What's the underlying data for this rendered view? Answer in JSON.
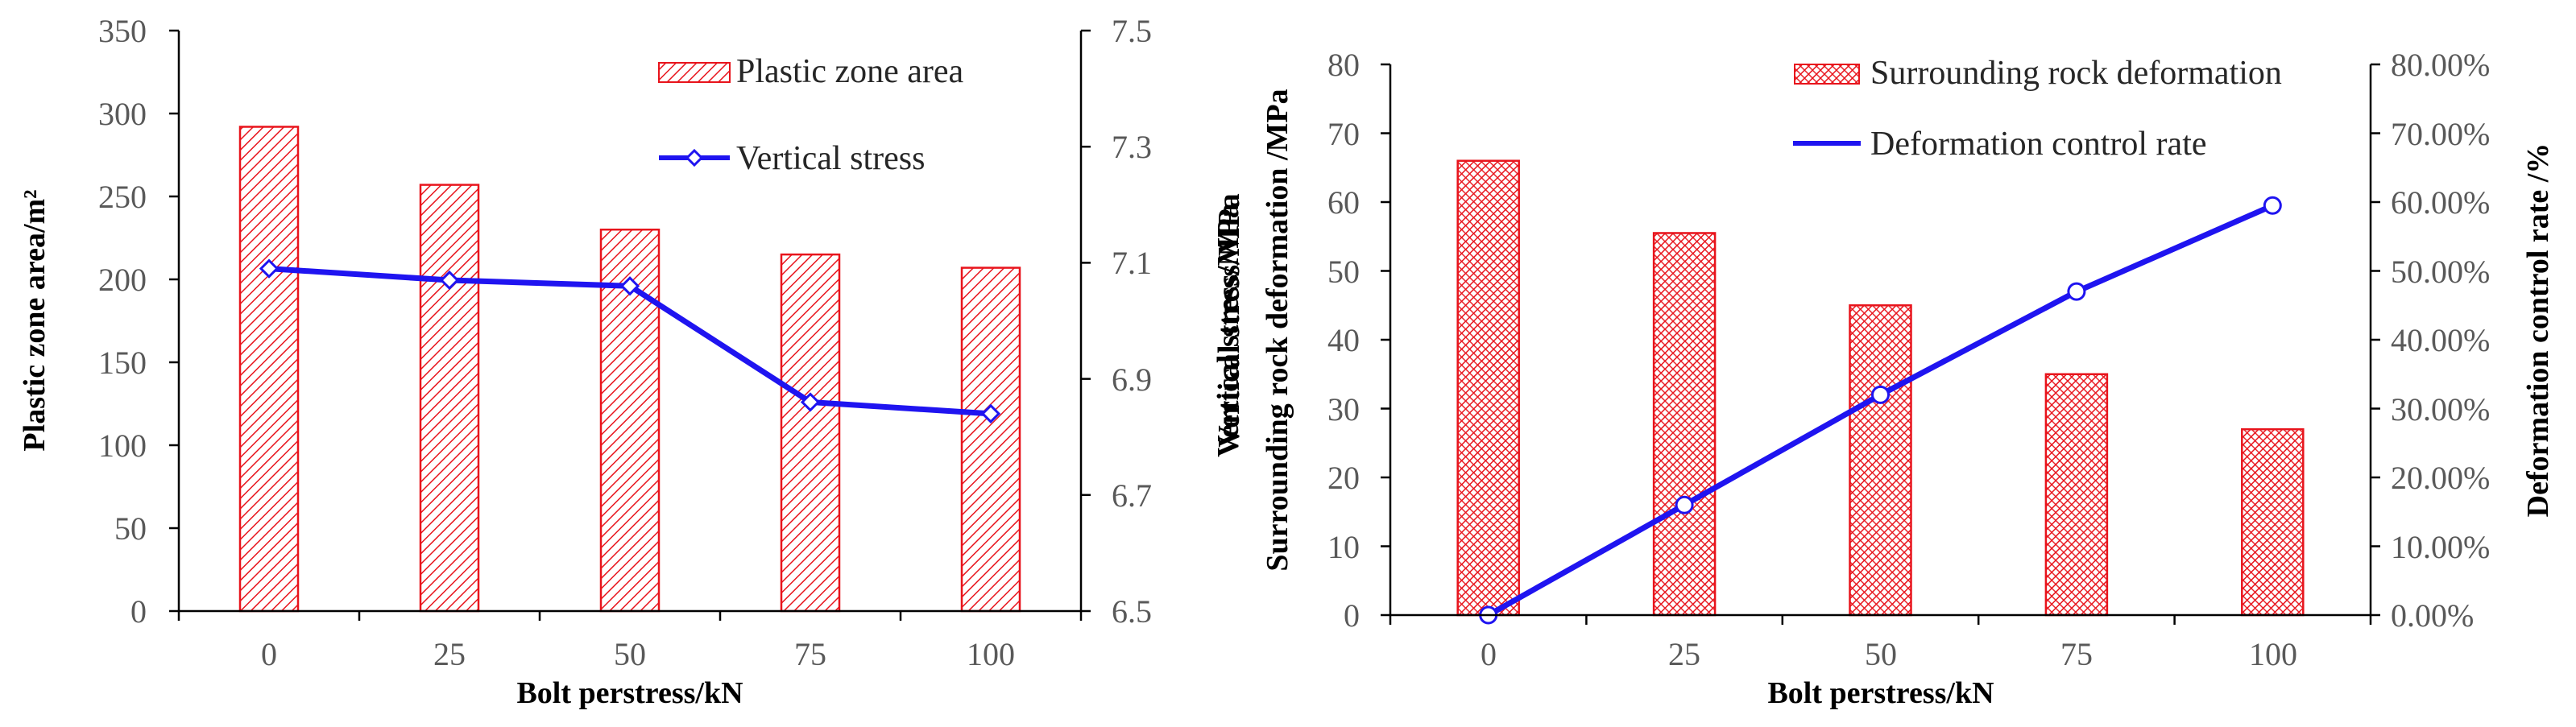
{
  "colors": {
    "bar_stroke": "#e8141c",
    "bar_hatch": "#e8141c",
    "line": "#1f14f0",
    "marker_fill": "#ffffff",
    "axis": "#000000",
    "tick_text": "#595959"
  },
  "chart_data": [
    {
      "type": "bar",
      "categories": [
        "0",
        "25",
        "50",
        "75",
        "100"
      ],
      "xlabel": "Bolt perstress/kN",
      "ylabel": "Plastic zone area/m²",
      "y2label": "Vertical stress/MPa",
      "ylim": [
        0,
        350
      ],
      "yticks": [
        "0",
        "50",
        "100",
        "150",
        "200",
        "250",
        "300",
        "350"
      ],
      "y2lim": [
        6.5,
        7.5
      ],
      "y2ticks": [
        "6.5",
        "6.7",
        "6.9",
        "7.1",
        "7.3",
        "7.5"
      ],
      "grid": false,
      "legend_position": "top-right",
      "series": [
        {
          "name": "Plastic zone area",
          "type": "bar",
          "axis": "left",
          "values": [
            292,
            257,
            230,
            215,
            207
          ]
        },
        {
          "name": "Vertical stress",
          "type": "line",
          "axis": "right",
          "marker": "diamond",
          "values": [
            7.09,
            7.07,
            7.06,
            6.86,
            6.84
          ]
        }
      ]
    },
    {
      "type": "bar",
      "categories": [
        "0",
        "25",
        "50",
        "75",
        "100"
      ],
      "xlabel": "Bolt perstress/kN",
      "ylabel": "Surrounding rock deformation /MPa",
      "y2label": "Deformation control rate /%",
      "ylim": [
        0,
        80
      ],
      "yticks": [
        "0",
        "10",
        "20",
        "30",
        "40",
        "50",
        "60",
        "70",
        "80"
      ],
      "y2lim": [
        0,
        80
      ],
      "y2ticks": [
        "0.00%",
        "10.00%",
        "20.00%",
        "30.00%",
        "40.00%",
        "50.00%",
        "60.00%",
        "70.00%",
        "80.00%"
      ],
      "grid": false,
      "legend_position": "top-right",
      "series": [
        {
          "name": "Surrounding rock deformation",
          "type": "bar",
          "axis": "left",
          "values": [
            66,
            55.5,
            45,
            35,
            27
          ]
        },
        {
          "name": "Deformation control rate",
          "type": "line",
          "axis": "right",
          "marker": "circle",
          "values": [
            0,
            16,
            32,
            47,
            59.5
          ]
        }
      ]
    }
  ]
}
